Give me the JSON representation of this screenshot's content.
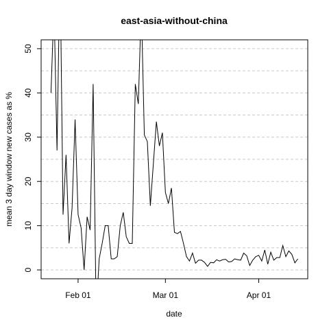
{
  "chart_data": {
    "type": "line",
    "title": "east-asia-without-china",
    "xlabel": "date",
    "ylabel": "mean  3  day window new cases as %",
    "x": [
      "Jan 23",
      "Jan 24",
      "Jan 25",
      "Jan 26",
      "Jan 27",
      "Jan 28",
      "Jan 29",
      "Jan 30",
      "Jan 31",
      "Feb 01",
      "Feb 02",
      "Feb 03",
      "Feb 04",
      "Feb 05",
      "Feb 06",
      "Feb 07",
      "Feb 08",
      "Feb 09",
      "Feb 10",
      "Feb 11",
      "Feb 12",
      "Feb 13",
      "Feb 14",
      "Feb 15",
      "Feb 16",
      "Feb 17",
      "Feb 18",
      "Feb 19",
      "Feb 20",
      "Feb 21",
      "Feb 22",
      "Feb 23",
      "Feb 24",
      "Feb 25",
      "Feb 26",
      "Feb 27",
      "Feb 28",
      "Feb 29",
      "Mar 01",
      "Mar 02",
      "Mar 03",
      "Mar 04",
      "Mar 05",
      "Mar 06",
      "Mar 07",
      "Mar 08",
      "Mar 09",
      "Mar 10",
      "Mar 11",
      "Mar 12",
      "Mar 13",
      "Mar 14",
      "Mar 15",
      "Mar 16",
      "Mar 17",
      "Mar 18",
      "Mar 19",
      "Mar 20",
      "Mar 21",
      "Mar 22",
      "Mar 23",
      "Mar 24",
      "Mar 25",
      "Mar 26",
      "Mar 27",
      "Mar 28",
      "Mar 29",
      "Mar 30",
      "Mar 31",
      "Apr 01",
      "Apr 02",
      "Apr 03",
      "Apr 04",
      "Apr 05",
      "Apr 06",
      "Apr 07",
      "Apr 08",
      "Apr 09",
      "Apr 10",
      "Apr 11",
      "Apr 12",
      "Apr 13",
      "Apr 14"
    ],
    "series": [
      {
        "name": "mean 3 day window",
        "color": "#000000",
        "values": [
          40,
          60,
          27,
          70,
          12.5,
          26,
          6,
          14,
          34,
          12.5,
          9.5,
          0,
          12,
          9,
          42,
          -10,
          2.5,
          6,
          10,
          10,
          2.5,
          2.5,
          3,
          10,
          13,
          7.5,
          6,
          6,
          42,
          37.5,
          60,
          30.5,
          29,
          14.5,
          24,
          33.5,
          28,
          31,
          17.5,
          15,
          18.5,
          8.5,
          8.2,
          8.7,
          6,
          3,
          2,
          3.8,
          1.5,
          2.2,
          2.2,
          1.7,
          0.8,
          1.7,
          1.6,
          2.3,
          2,
          2.3,
          2.4,
          1.8,
          1.9,
          2.5,
          2.3,
          2.2,
          3.8,
          3.2,
          1,
          2.2,
          3,
          3.3,
          2,
          4.5,
          1.3,
          4,
          2.2,
          2.8,
          2.8,
          5.5,
          3,
          4.3,
          3.5,
          1.6,
          2.5
        ]
      }
    ],
    "xticks": [
      "Feb 01",
      "Mar 01",
      "Apr 01"
    ],
    "ylim": [
      -2,
      52
    ],
    "yticks": [
      0,
      10,
      20,
      30,
      40,
      50
    ],
    "ygrid": [
      0,
      5,
      10,
      15,
      20,
      25,
      30,
      35,
      40,
      45,
      50
    ]
  }
}
